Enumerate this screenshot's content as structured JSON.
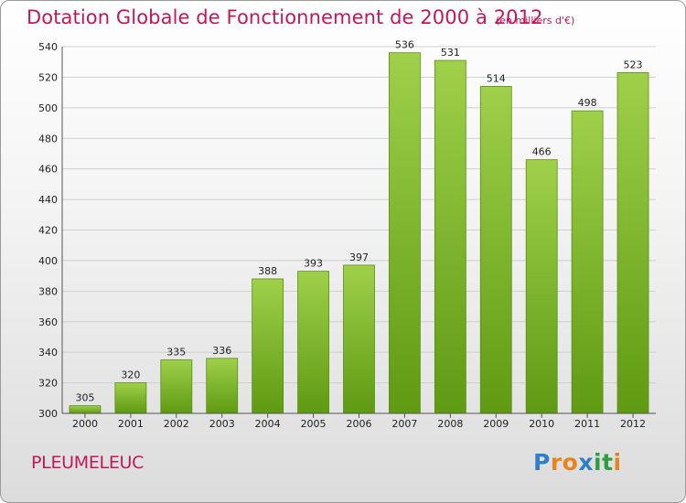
{
  "title": "Dotation Globale de Fonctionnement de 2000 à 2012",
  "subtitle": "(en milliers d'€)",
  "commune": "PLEUMELEUC",
  "brand": {
    "text": "Proxiti",
    "letters": [
      "P",
      "r",
      "o",
      "x",
      "i",
      "t",
      "i"
    ],
    "colors": [
      "#2e7fc7",
      "#e8841c",
      "#e8841c",
      "#2e7fc7",
      "#2e9e3e",
      "#2e9e3e",
      "#e8841c"
    ]
  },
  "colors": {
    "title": "#c2185b",
    "bar_top": "#9fd04a",
    "bar_bottom": "#5f9a12",
    "bar_border": "#5a8f10",
    "grid": "#cfcfcf",
    "axis": "#555555"
  },
  "chart_data": {
    "type": "bar",
    "title": "Dotation Globale de Fonctionnement de 2000 à 2012",
    "subtitle": "(en milliers d'€)",
    "xlabel": "",
    "ylabel": "",
    "categories": [
      "2000",
      "2001",
      "2002",
      "2003",
      "2004",
      "2005",
      "2006",
      "2007",
      "2008",
      "2009",
      "2010",
      "2011",
      "2012"
    ],
    "values": [
      305,
      320,
      335,
      336,
      388,
      393,
      397,
      536,
      531,
      514,
      466,
      498,
      523
    ],
    "ylim": [
      300,
      540
    ],
    "yticks": [
      300,
      320,
      340,
      360,
      380,
      400,
      420,
      440,
      460,
      480,
      500,
      520,
      540
    ],
    "grid": true,
    "legend": "none"
  }
}
